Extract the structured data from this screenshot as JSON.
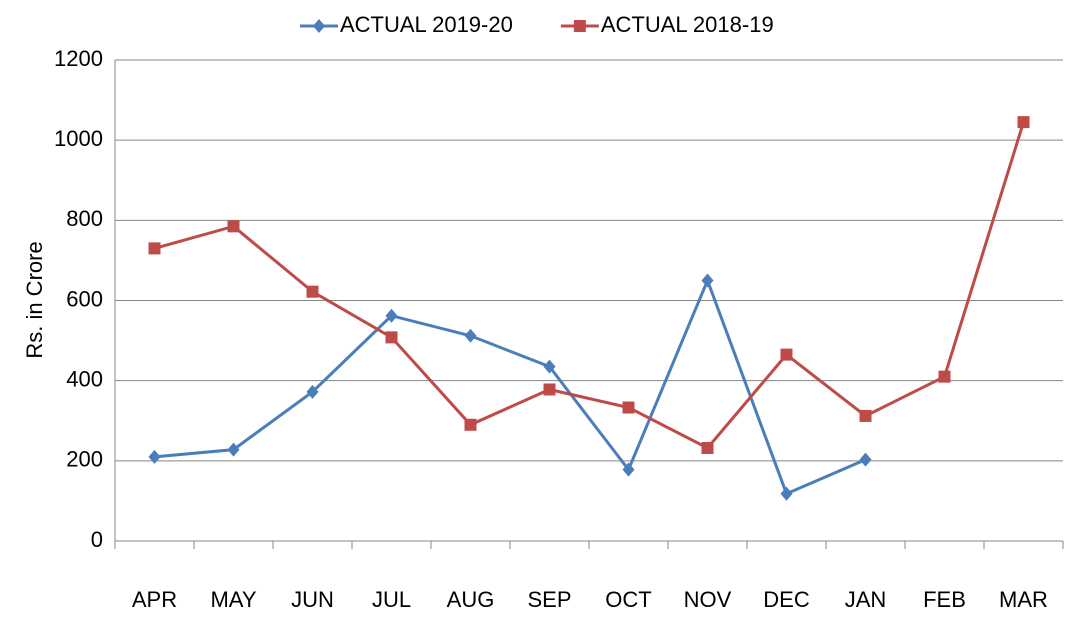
{
  "chart_data": {
    "type": "line",
    "y_label": "Rs. in Crore",
    "categories": [
      "APR",
      "MAY",
      "JUN",
      "JUL",
      "AUG",
      "SEP",
      "OCT",
      "NOV",
      "DEC",
      "JAN",
      "FEB",
      "MAR"
    ],
    "series": [
      {
        "name": "ACTUAL 2019-20",
        "color": "#4a7ebb",
        "marker": "diamond",
        "values": [
          210,
          228,
          372,
          562,
          512,
          435,
          178,
          650,
          118,
          203,
          null,
          null
        ]
      },
      {
        "name": "ACTUAL 2018-19",
        "color": "#be4b48",
        "marker": "square",
        "values": [
          730,
          785,
          622,
          508,
          290,
          378,
          333,
          232,
          465,
          312,
          410,
          1045
        ]
      }
    ],
    "ylim": [
      0,
      1200
    ],
    "yticks": [
      0,
      200,
      400,
      600,
      800,
      1000,
      1200
    ],
    "grid": true,
    "legend": "top"
  }
}
